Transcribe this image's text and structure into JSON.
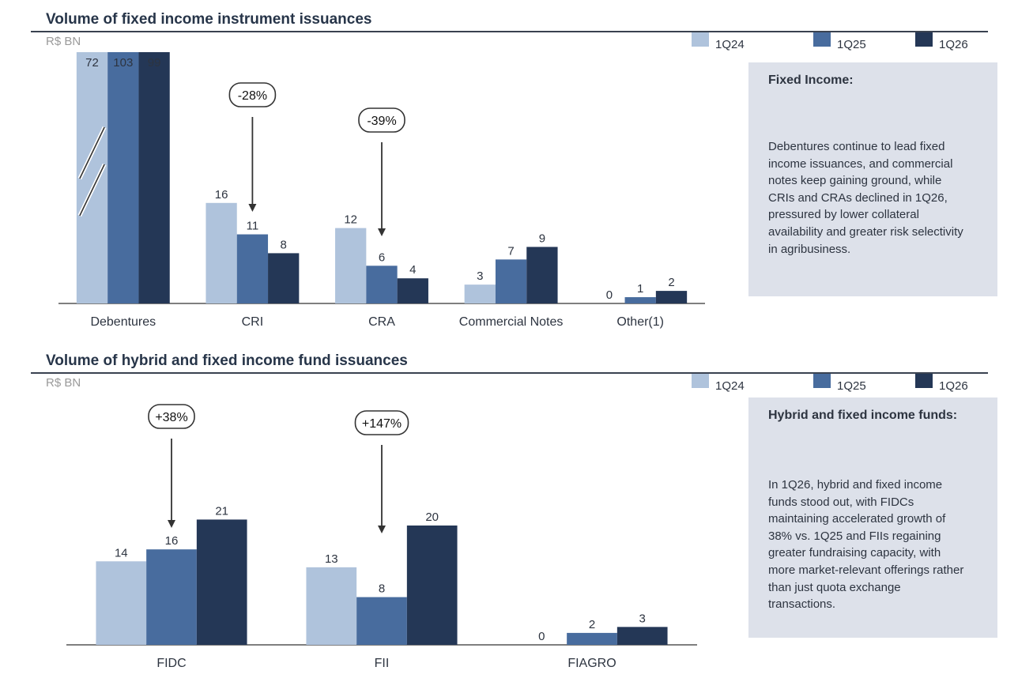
{
  "colors": {
    "1Q24": "#afc3dc",
    "1Q25": "#486c9e",
    "1Q26": "#243756",
    "panel_bg": "#dde1ea",
    "title": "#273549"
  },
  "legend": [
    {
      "label": "1Q24",
      "color": "#afc3dc"
    },
    {
      "label": "1Q25",
      "color": "#486c9e"
    },
    {
      "label": "1Q26",
      "color": "#243756"
    }
  ],
  "section1": {
    "title": "Volume of fixed income instrument issuances",
    "unit": "R$ BN",
    "panel": {
      "title": "Fixed Income:",
      "text": "Debentures continue to lead fixed income issuances, and commercial notes keep gaining ground, while CRIs and CRAs declined in 1Q26, pressured by lower collateral availability and greater risk selectivity in agribusiness."
    }
  },
  "section2": {
    "title": "Volume of hybrid and fixed income fund issuances",
    "unit": "R$ BN",
    "panel": {
      "title": "Hybrid and fixed income funds:",
      "text": "In 1Q26, hybrid and fixed income funds stood out, with FIDCs maintaining accelerated growth of 38% vs. 1Q25 and FIIs regaining greater fundraising capacity, with more market-relevant offerings rather than just quota exchange transactions."
    }
  },
  "chart_data": [
    {
      "type": "bar",
      "title": "Volume of fixed income instrument issuances",
      "ylabel": "R$ BN",
      "categories": [
        "Debentures",
        "CRI",
        "CRA",
        "Commercial Notes",
        "Other(1)"
      ],
      "series": [
        {
          "name": "1Q24",
          "values": [
            72,
            16,
            12,
            3,
            0
          ]
        },
        {
          "name": "1Q25",
          "values": [
            103,
            11,
            6,
            7,
            1
          ]
        },
        {
          "name": "1Q26",
          "values": [
            99,
            8,
            4,
            9,
            2
          ]
        }
      ],
      "axis_break_category": "Debentures",
      "annotations": [
        {
          "category": "CRI",
          "label": "-28%"
        },
        {
          "category": "CRA",
          "label": "-39%"
        }
      ],
      "legend_position": "top-right",
      "grid": false
    },
    {
      "type": "bar",
      "title": "Volume of hybrid and fixed income fund issuances",
      "ylabel": "R$ BN",
      "categories": [
        "FIDC",
        "FII",
        "FIAGRO"
      ],
      "series": [
        {
          "name": "1Q24",
          "values": [
            14,
            13,
            0
          ]
        },
        {
          "name": "1Q25",
          "values": [
            16,
            8,
            2
          ]
        },
        {
          "name": "1Q26",
          "values": [
            21,
            20,
            3
          ]
        }
      ],
      "annotations": [
        {
          "category": "FIDC",
          "label": "+38%"
        },
        {
          "category": "FII",
          "label": "+147%"
        }
      ],
      "legend_position": "top-right",
      "grid": false
    }
  ]
}
